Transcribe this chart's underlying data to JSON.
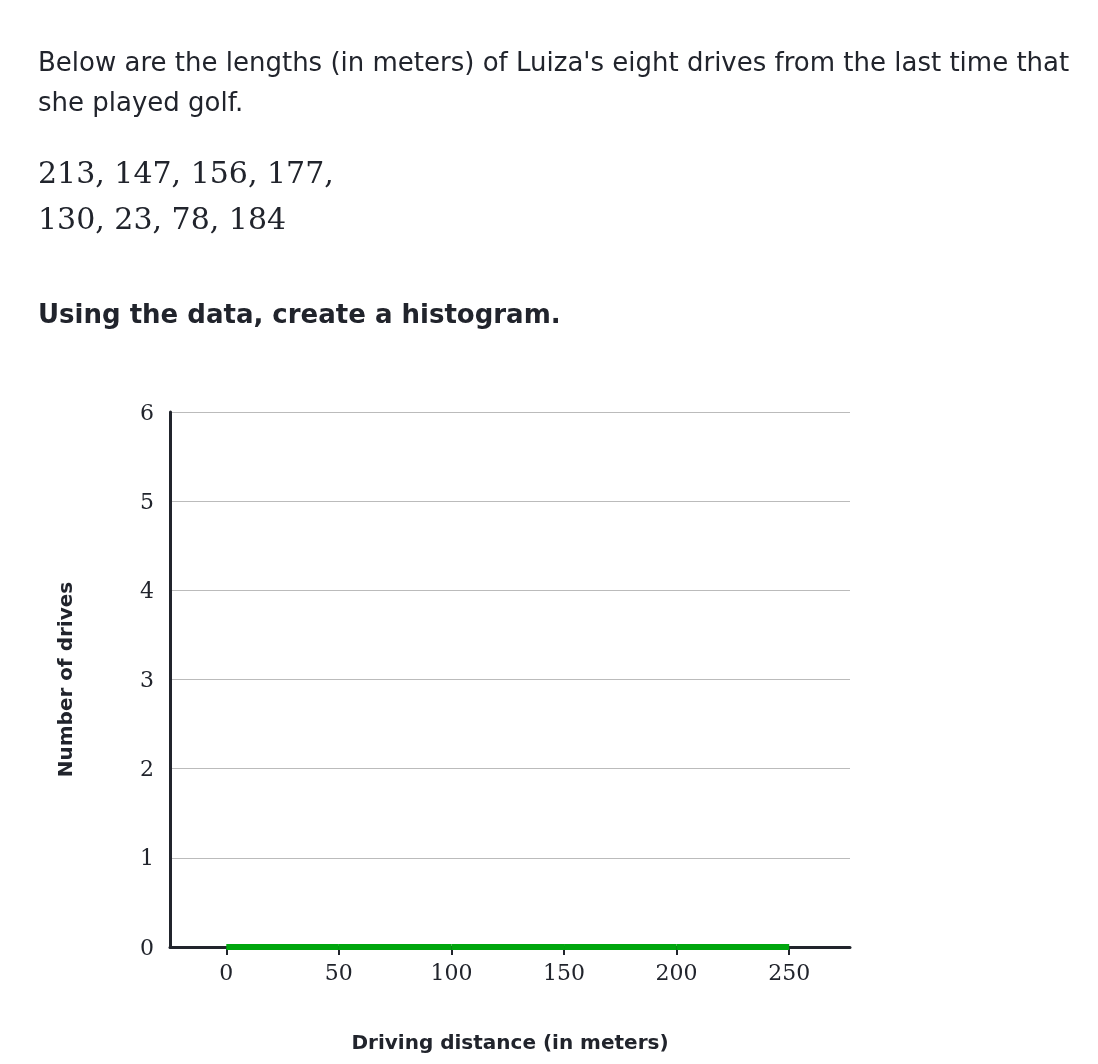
{
  "chart_data": {
    "type": "histogram",
    "title": "Below are the lengths (in meters) of Luiza's eight drives from the last time that she played golf.",
    "subtitle": "213, 147, 156, 177,\n130, 23, 78, 184",
    "annotations": [
      "Using the data, create a histogram."
    ],
    "bins": [
      0,
      50,
      100,
      150,
      200,
      250
    ],
    "values": [
      0,
      0,
      0,
      0,
      0
    ],
    "color": "#00a60e",
    "xlabel": "Driving distance (in meters)",
    "ylabel": "Number of drives",
    "xlim": [
      -25,
      277
    ],
    "xticks": [
      0,
      50,
      100,
      150,
      200,
      250
    ],
    "ylim": [
      0,
      6
    ],
    "yticks": [
      0,
      1,
      2,
      3,
      4,
      5,
      6
    ],
    "grid": "y"
  }
}
